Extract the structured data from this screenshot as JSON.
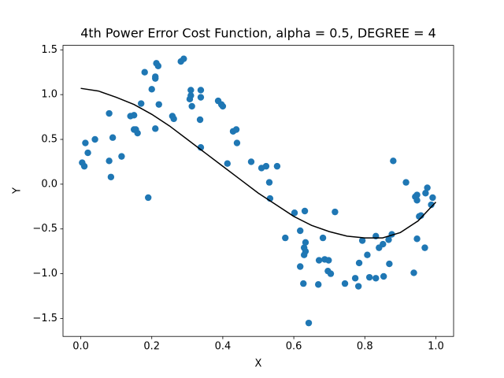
{
  "chart_data": {
    "type": "scatter",
    "title": "4th Power Error Cost Function, alpha = 0.5, DEGREE = 4",
    "x_label": "X",
    "y_label": "Y",
    "xlim": [
      -0.05,
      1.05
    ],
    "ylim": [
      -1.7,
      1.55
    ],
    "xticks": [
      {
        "value": 0,
        "label": "0.0"
      },
      0.2,
      0.4,
      0.6,
      0.8,
      {
        "value": 1,
        "label": "1.0"
      }
    ],
    "yticks": [
      {
        "value": -1.5,
        "label": "−1.5"
      },
      {
        "value": -1,
        "label": "−1.0"
      },
      {
        "value": -0.5,
        "label": "−0.5"
      },
      {
        "value": 0,
        "label": "0.0"
      },
      0.5,
      {
        "value": 1,
        "label": "1.0"
      },
      1.5
    ],
    "grid": false,
    "series": [
      {
        "type": "scatter",
        "color": "#1f77b4",
        "x": [
          0.004,
          0.01,
          0.013,
          0.02,
          0.04,
          0.08,
          0.08,
          0.085,
          0.09,
          0.115,
          0.14,
          0.15,
          0.15,
          0.155,
          0.16,
          0.17,
          0.18,
          0.19,
          0.2,
          0.21,
          0.21,
          0.213,
          0.218,
          0.21,
          0.22,
          0.258,
          0.262,
          0.282,
          0.29,
          0.307,
          0.31,
          0.313,
          0.31,
          0.336,
          0.338,
          0.338,
          0.338,
          0.387,
          0.396,
          0.4,
          0.413,
          0.429,
          0.438,
          0.44,
          0.48,
          0.509,
          0.522,
          0.531,
          0.533,
          0.553,
          0.576,
          0.602,
          0.618,
          0.618,
          0.627,
          0.629,
          0.631,
          0.629,
          0.633,
          0.633,
          0.642,
          0.669,
          0.671,
          0.682,
          0.687,
          0.696,
          0.698,
          0.704,
          0.716,
          0.744,
          0.773,
          0.782,
          0.784,
          0.793,
          0.807,
          0.813,
          0.831,
          0.831,
          0.84,
          0.851,
          0.853,
          0.867,
          0.869,
          0.876,
          0.88,
          0.916,
          0.938,
          0.942,
          0.947,
          0.947,
          0.947,
          0.953,
          0.958,
          0.969,
          0.971,
          0.976,
          0.987,
          0.991
        ],
        "values": [
          0.24,
          0.2,
          0.46,
          0.35,
          0.5,
          0.79,
          0.26,
          0.08,
          0.52,
          0.31,
          0.76,
          0.77,
          0.61,
          0.61,
          0.57,
          0.9,
          1.25,
          -0.15,
          1.06,
          1.2,
          1.18,
          1.35,
          1.32,
          0.62,
          0.89,
          0.76,
          0.73,
          1.37,
          1.4,
          0.95,
          1.05,
          0.87,
          0.99,
          0.72,
          1.05,
          0.97,
          0.41,
          0.93,
          0.89,
          0.87,
          0.23,
          0.59,
          0.61,
          0.46,
          0.25,
          0.18,
          0.2,
          0.02,
          -0.16,
          0.2,
          -0.6,
          -0.32,
          -0.52,
          -0.92,
          -1.11,
          -0.71,
          -0.3,
          -0.79,
          -0.65,
          -0.75,
          -1.55,
          -1.12,
          -0.85,
          -0.6,
          -0.84,
          -0.97,
          -0.85,
          -1.0,
          -0.31,
          -1.11,
          -1.05,
          -1.14,
          -0.88,
          -0.63,
          -0.79,
          -1.04,
          -1.05,
          -0.58,
          -0.71,
          -0.67,
          -1.03,
          -0.62,
          -0.89,
          -0.56,
          0.26,
          0.02,
          -0.99,
          -0.14,
          -0.12,
          -0.18,
          -0.61,
          -0.36,
          -0.35,
          -0.71,
          -0.1,
          -0.04,
          -0.23,
          -0.15
        ]
      },
      {
        "type": "line",
        "color": "#000000",
        "x": [
          0,
          0.05,
          0.1,
          0.15,
          0.2,
          0.25,
          0.3,
          0.35,
          0.4,
          0.45,
          0.5,
          0.55,
          0.6,
          0.65,
          0.7,
          0.75,
          0.8,
          0.85,
          0.9,
          0.95,
          1.0
        ],
        "values": [
          1.07,
          1.04,
          0.97,
          0.89,
          0.78,
          0.65,
          0.5,
          0.35,
          0.2,
          0.05,
          -0.1,
          -0.23,
          -0.36,
          -0.46,
          -0.53,
          -0.58,
          -0.6,
          -0.6,
          -0.54,
          -0.41,
          -0.2
        ]
      }
    ]
  }
}
